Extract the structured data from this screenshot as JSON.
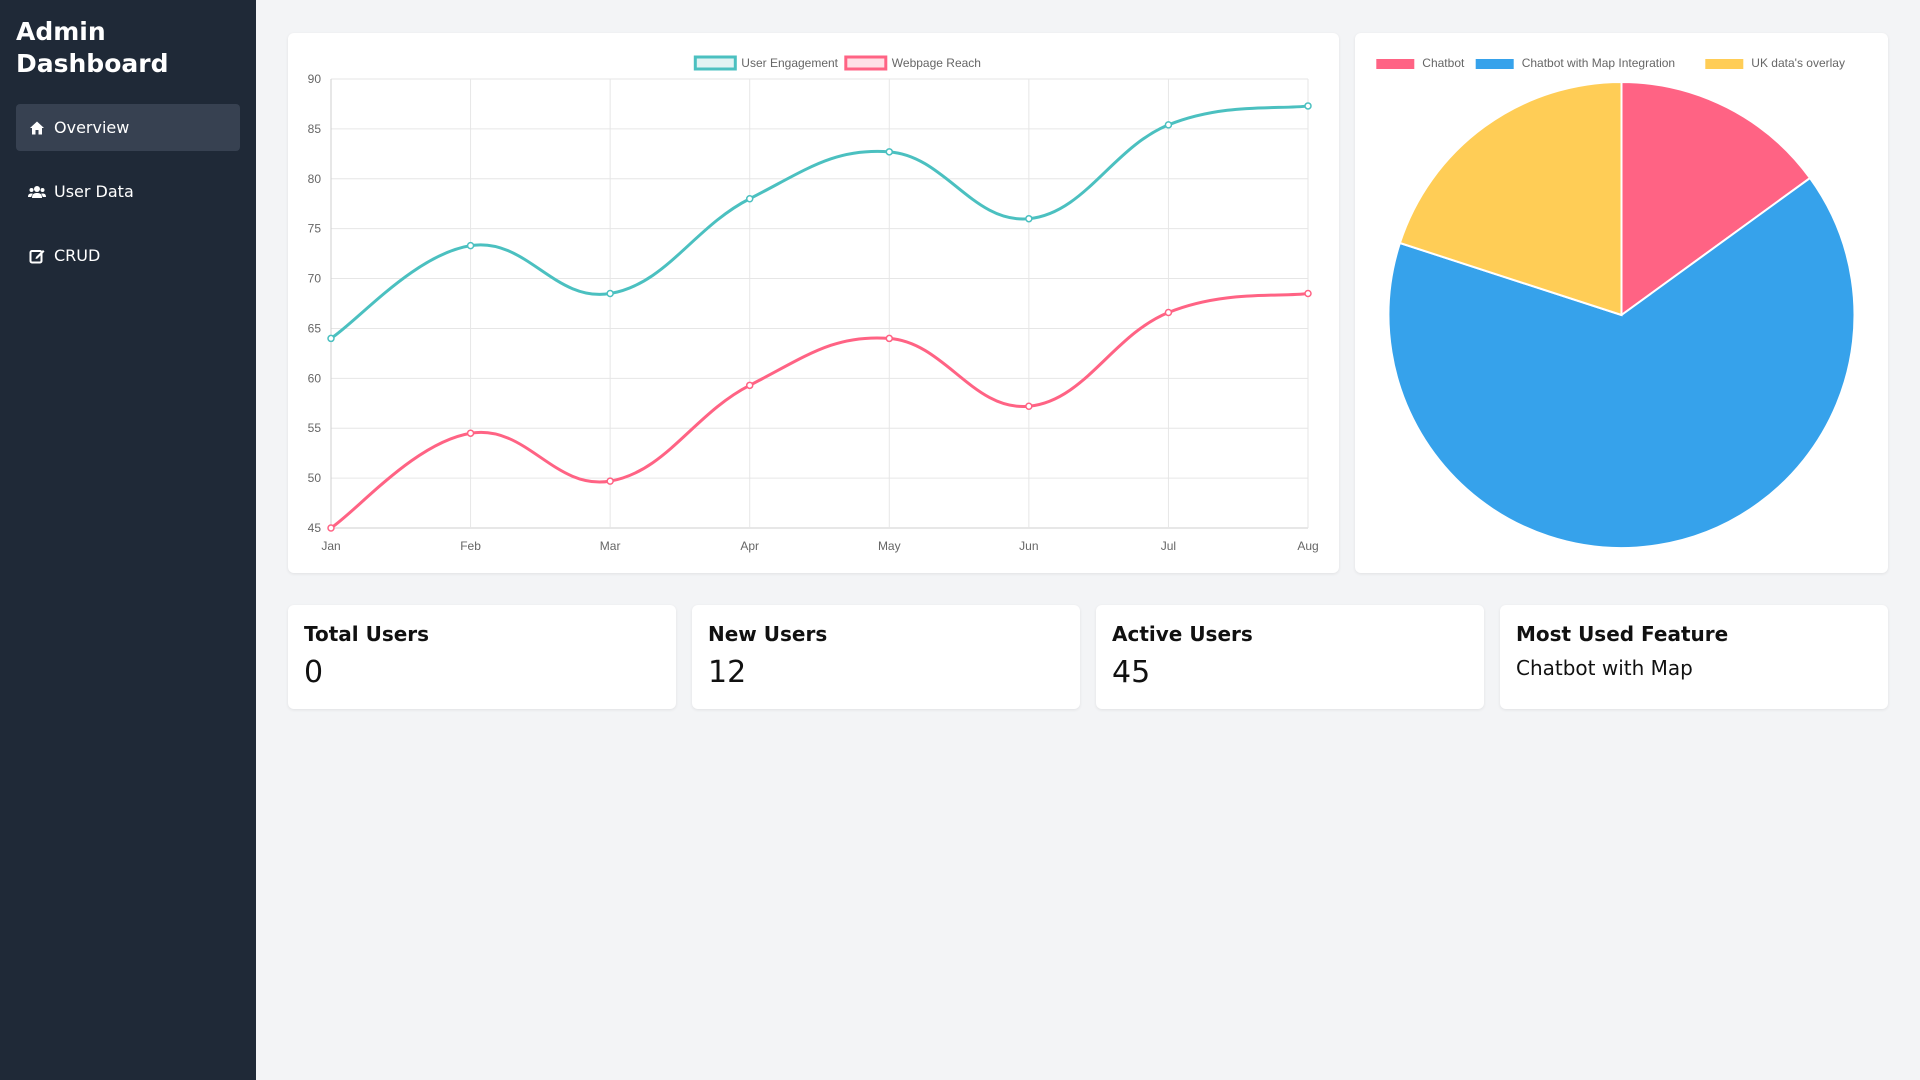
{
  "sidebar": {
    "title": "Admin Dashboard",
    "items": [
      {
        "label": "Overview",
        "icon": "home-icon",
        "active": true
      },
      {
        "label": "User Data",
        "icon": "users-icon",
        "active": false
      },
      {
        "label": "CRUD",
        "icon": "edit-icon",
        "active": false
      }
    ]
  },
  "stats": [
    {
      "title": "Total Users",
      "value": "0"
    },
    {
      "title": "New Users",
      "value": "12"
    },
    {
      "title": "Active Users",
      "value": "45"
    },
    {
      "title": "Most Used Feature",
      "value": "Chatbot with Map"
    }
  ],
  "chart_data": [
    {
      "type": "line",
      "categories": [
        "Jan",
        "Feb",
        "Mar",
        "Apr",
        "May",
        "Jun",
        "Jul",
        "Aug"
      ],
      "series": [
        {
          "name": "User Engagement",
          "color": "#4bc0c0",
          "values": [
            64,
            73.3,
            68.5,
            78,
            82.7,
            76,
            85.4,
            87.3
          ]
        },
        {
          "name": "Webpage Reach",
          "color": "#ff6384",
          "values": [
            45,
            54.5,
            49.7,
            59.3,
            64,
            57.2,
            66.6,
            68.5
          ]
        }
      ],
      "ylim": [
        45,
        90
      ],
      "yticks": [
        45,
        50,
        55,
        60,
        65,
        70,
        75,
        80,
        85,
        90
      ],
      "grid": true,
      "legend": "top"
    },
    {
      "type": "pie",
      "slices": [
        {
          "label": "Chatbot",
          "value": 15,
          "color": "#ff6384"
        },
        {
          "label": "Chatbot with Map Integration",
          "value": 65,
          "color": "#36a2eb"
        },
        {
          "label": "UK data's overlay",
          "value": 20,
          "color": "#ffcd56"
        }
      ],
      "legend": "top"
    }
  ]
}
